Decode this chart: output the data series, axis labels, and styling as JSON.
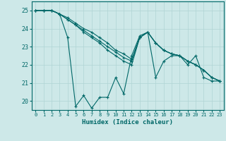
{
  "xlabel": "Humidex (Indice chaleur)",
  "ylabel": "",
  "xlim": [
    -0.5,
    23.5
  ],
  "ylim": [
    19.5,
    25.5
  ],
  "xticks": [
    0,
    1,
    2,
    3,
    4,
    5,
    6,
    7,
    8,
    9,
    10,
    11,
    12,
    13,
    14,
    15,
    16,
    17,
    18,
    19,
    20,
    21,
    22,
    23
  ],
  "yticks": [
    20,
    21,
    22,
    23,
    24,
    25
  ],
  "bg_color": "#cde8e8",
  "grid_color": "#b0d4d4",
  "line_color": "#006868",
  "lines": [
    [
      25.0,
      25.0,
      25.0,
      24.8,
      23.5,
      19.7,
      20.3,
      19.6,
      20.2,
      20.2,
      21.3,
      20.4,
      22.5,
      23.6,
      23.8,
      21.3,
      22.2,
      22.5,
      22.5,
      22.0,
      22.5,
      21.3,
      21.1,
      21.1
    ],
    [
      25.0,
      25.0,
      25.0,
      24.8,
      24.5,
      24.2,
      23.8,
      23.5,
      23.2,
      22.8,
      22.5,
      22.2,
      22.0,
      23.5,
      23.8,
      23.2,
      22.8,
      22.6,
      22.5,
      22.2,
      22.0,
      21.7,
      21.3,
      21.1
    ],
    [
      25.0,
      25.0,
      25.0,
      24.8,
      24.5,
      24.2,
      23.9,
      23.6,
      23.3,
      23.0,
      22.7,
      22.4,
      22.2,
      23.5,
      23.8,
      23.2,
      22.8,
      22.6,
      22.5,
      22.2,
      22.0,
      21.7,
      21.3,
      21.1
    ],
    [
      25.0,
      25.0,
      25.0,
      24.8,
      24.6,
      24.3,
      24.0,
      23.8,
      23.5,
      23.2,
      22.8,
      22.6,
      22.3,
      23.5,
      23.8,
      23.2,
      22.8,
      22.6,
      22.5,
      22.2,
      22.0,
      21.7,
      21.3,
      21.1
    ]
  ]
}
